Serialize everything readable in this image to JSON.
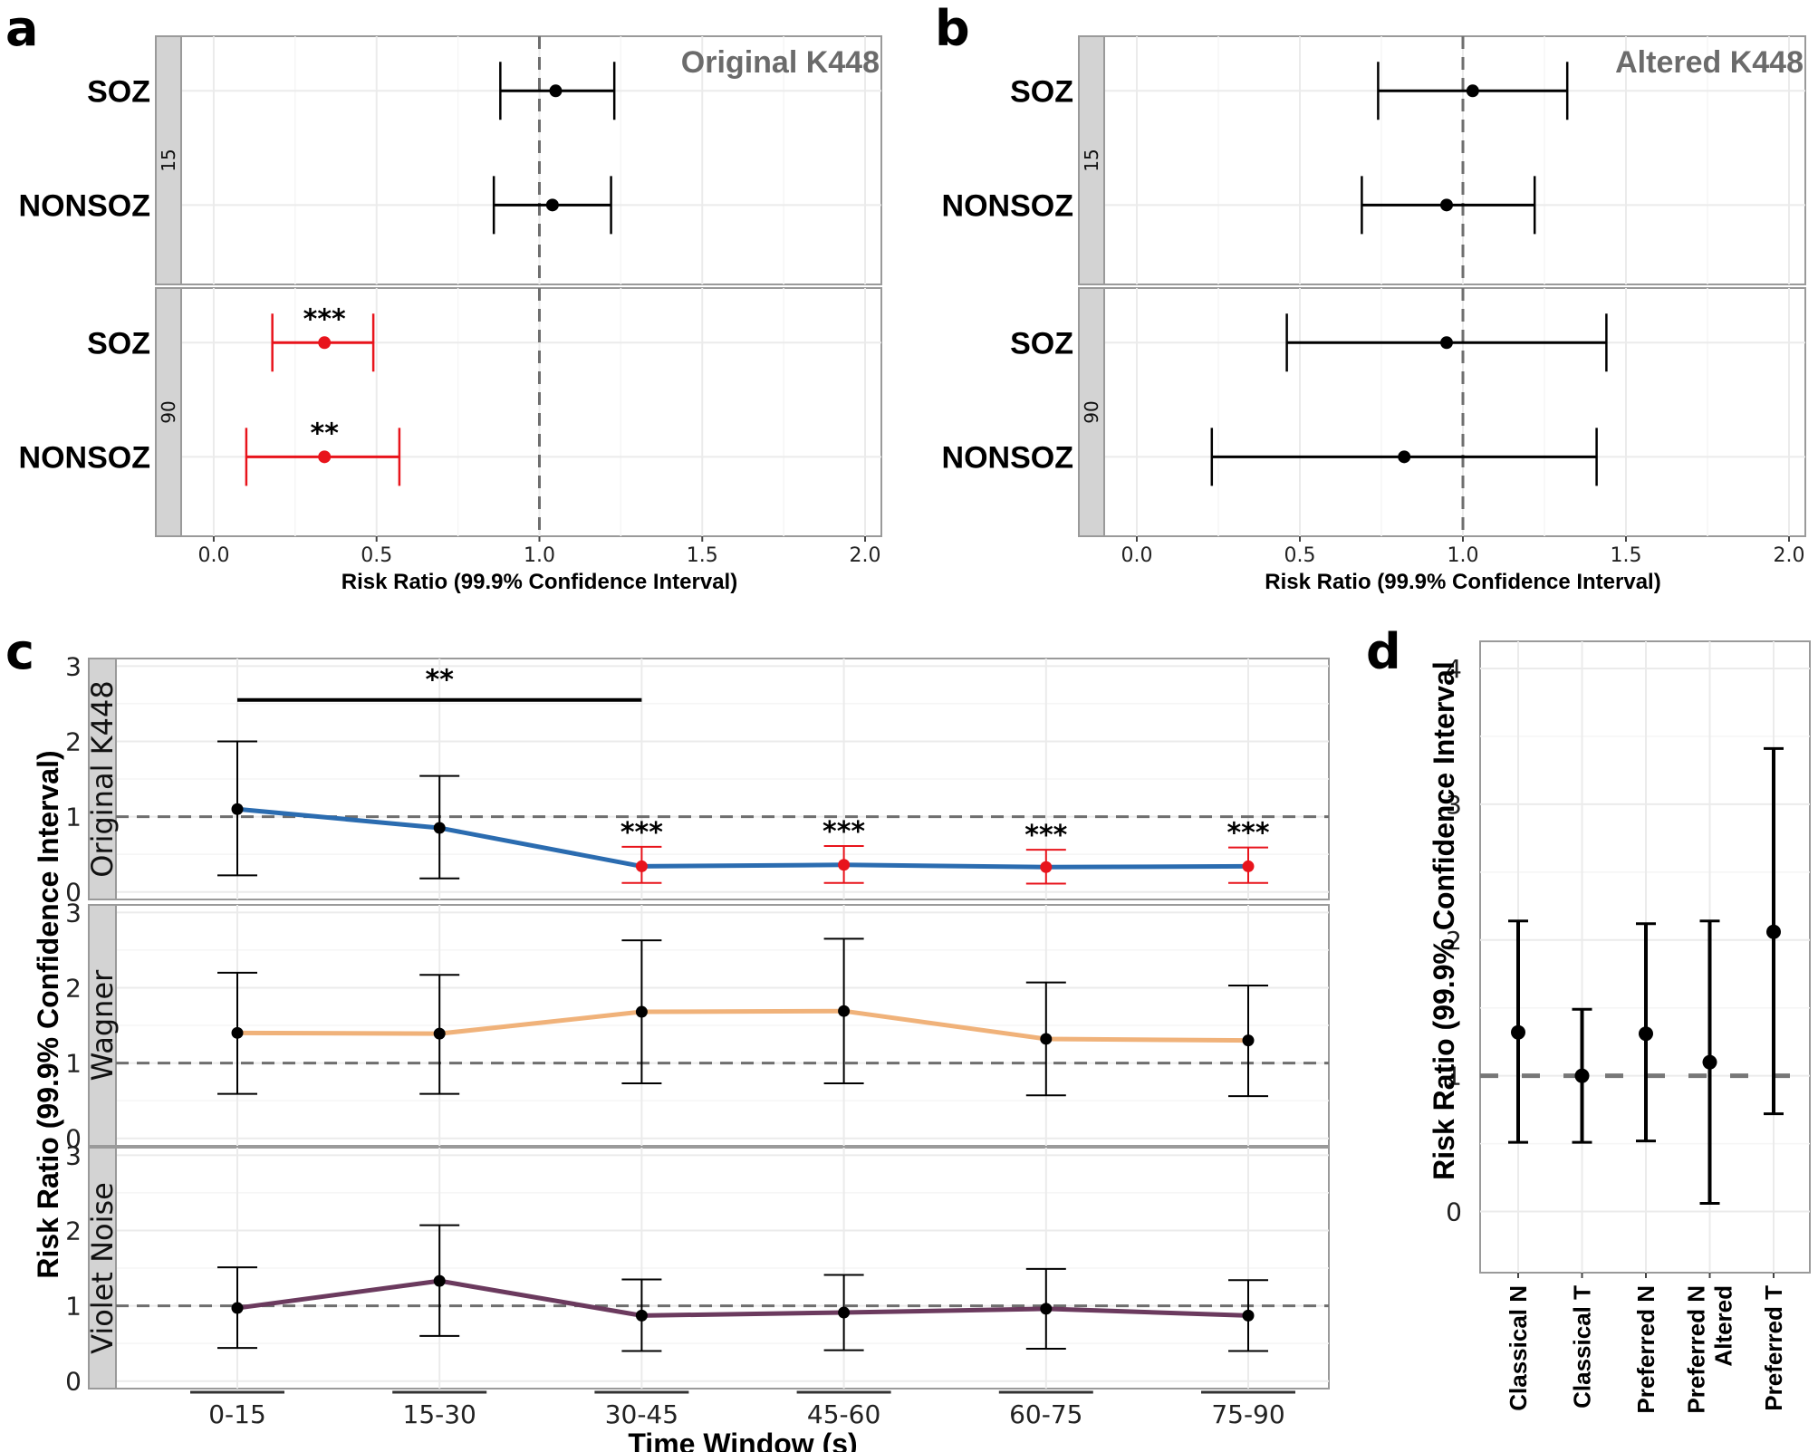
{
  "figure": {
    "panel_letters": [
      "a",
      "b",
      "c",
      "d"
    ]
  },
  "chart_data": [
    {
      "panel": "a",
      "type": "scatter",
      "subtype": "forest-plot",
      "title": "Original K448",
      "xlabel": "Risk Ratio (99.9% Confidence Interval)",
      "ylabel": "",
      "xlim": [
        -0.1,
        2.05
      ],
      "xticks": [
        0.0,
        0.5,
        1.0,
        1.5,
        2.0
      ],
      "xtick_labels": [
        "0.0",
        "0.5",
        "1.0",
        "1.5",
        "2.0"
      ],
      "reference_line": 1.0,
      "grid": true,
      "facets": [
        {
          "strip": "15",
          "rows": [
            {
              "label": "SOZ",
              "estimate": 1.05,
              "lower": 0.88,
              "upper": 1.23,
              "significance": "",
              "color": "#000000"
            },
            {
              "label": "NONSOZ",
              "estimate": 1.04,
              "lower": 0.86,
              "upper": 1.22,
              "significance": "",
              "color": "#000000"
            }
          ]
        },
        {
          "strip": "90",
          "rows": [
            {
              "label": "SOZ",
              "estimate": 0.34,
              "lower": 0.18,
              "upper": 0.49,
              "significance": "***",
              "color": "#e8141c"
            },
            {
              "label": "NONSOZ",
              "estimate": 0.34,
              "lower": 0.1,
              "upper": 0.57,
              "significance": "**",
              "color": "#e8141c"
            }
          ]
        }
      ]
    },
    {
      "panel": "b",
      "type": "scatter",
      "subtype": "forest-plot",
      "title": "Altered K448",
      "xlabel": "Risk Ratio (99.9% Confidence Interval)",
      "ylabel": "",
      "xlim": [
        -0.1,
        2.05
      ],
      "xticks": [
        0.0,
        0.5,
        1.0,
        1.5,
        2.0
      ],
      "xtick_labels": [
        "0.0",
        "0.5",
        "1.0",
        "1.5",
        "2.0"
      ],
      "reference_line": 1.0,
      "grid": true,
      "facets": [
        {
          "strip": "15",
          "rows": [
            {
              "label": "SOZ",
              "estimate": 1.03,
              "lower": 0.74,
              "upper": 1.32,
              "significance": "",
              "color": "#000000"
            },
            {
              "label": "NONSOZ",
              "estimate": 0.95,
              "lower": 0.69,
              "upper": 1.22,
              "significance": "",
              "color": "#000000"
            }
          ]
        },
        {
          "strip": "90",
          "rows": [
            {
              "label": "SOZ",
              "estimate": 0.95,
              "lower": 0.46,
              "upper": 1.44,
              "significance": "",
              "color": "#000000"
            },
            {
              "label": "NONSOZ",
              "estimate": 0.82,
              "lower": 0.23,
              "upper": 1.41,
              "significance": "",
              "color": "#000000"
            }
          ]
        }
      ]
    },
    {
      "panel": "c",
      "type": "line",
      "title": "",
      "xlabel": "Time Window (s)",
      "ylabel": "Risk Ratio (99.9% Confidence Interval)",
      "categories": [
        "0-15",
        "15-30",
        "30-45",
        "45-60",
        "60-75",
        "75-90"
      ],
      "ylim": [
        -0.1,
        3.1
      ],
      "yticks": [
        0,
        1,
        2,
        3
      ],
      "reference_line": 1.0,
      "grid": true,
      "facets": [
        {
          "strip": "Original K448",
          "line_color": "#2b6cb0",
          "values": [
            1.1,
            0.85,
            0.34,
            0.36,
            0.33,
            0.34
          ],
          "lower": [
            0.22,
            0.18,
            0.12,
            0.12,
            0.11,
            0.12
          ],
          "upper": [
            2.0,
            1.54,
            0.6,
            0.61,
            0.56,
            0.59
          ],
          "point_colors": [
            "#000000",
            "#000000",
            "#e8141c",
            "#e8141c",
            "#e8141c",
            "#e8141c"
          ],
          "significance": [
            "",
            "",
            "***",
            "***",
            "***",
            "***"
          ],
          "bracket": {
            "from": "0-15",
            "to": "30-45",
            "label": "**",
            "y": 2.55
          }
        },
        {
          "strip": "Wagner",
          "line_color": "#f0b27a",
          "values": [
            1.4,
            1.39,
            1.68,
            1.69,
            1.32,
            1.3
          ],
          "lower": [
            0.59,
            0.59,
            0.73,
            0.73,
            0.57,
            0.56
          ],
          "upper": [
            2.2,
            2.17,
            2.63,
            2.65,
            2.07,
            2.03
          ],
          "point_colors": [
            "#000000",
            "#000000",
            "#000000",
            "#000000",
            "#000000",
            "#000000"
          ],
          "significance": [
            "",
            "",
            "",
            "",
            "",
            ""
          ]
        },
        {
          "strip": "Violet Noise",
          "line_color": "#6b3a5e",
          "values": [
            0.97,
            1.33,
            0.87,
            0.91,
            0.96,
            0.87
          ],
          "lower": [
            0.44,
            0.6,
            0.4,
            0.41,
            0.43,
            0.4
          ],
          "upper": [
            1.51,
            2.07,
            1.35,
            1.41,
            1.49,
            1.34
          ],
          "point_colors": [
            "#000000",
            "#000000",
            "#000000",
            "#000000",
            "#000000",
            "#000000"
          ],
          "significance": [
            "",
            "",
            "",
            "",
            "",
            ""
          ]
        }
      ]
    },
    {
      "panel": "d",
      "type": "scatter",
      "subtype": "errorbar",
      "title": "",
      "xlabel": "",
      "ylabel": "Risk Ratio (99.9% Confidence Interval",
      "categories": [
        "Classical N",
        "Classical T",
        "Preferred N",
        "Preferred N Altered",
        "Preferred T"
      ],
      "category_lines": [
        [
          "Classical N"
        ],
        [
          "Classical T"
        ],
        [
          "Preferred N"
        ],
        [
          "Preferred N",
          "Altered"
        ],
        [
          "Preferred T"
        ]
      ],
      "values": [
        1.32,
        1.0,
        1.31,
        1.1,
        2.06
      ],
      "lower": [
        0.51,
        0.51,
        0.52,
        0.06,
        0.72
      ],
      "upper": [
        2.14,
        1.49,
        2.12,
        2.14,
        3.41
      ],
      "ylim": [
        -0.45,
        4.2
      ],
      "yticks": [
        0,
        1,
        2,
        3,
        4
      ],
      "reference_line": 1.0,
      "grid": true
    }
  ]
}
